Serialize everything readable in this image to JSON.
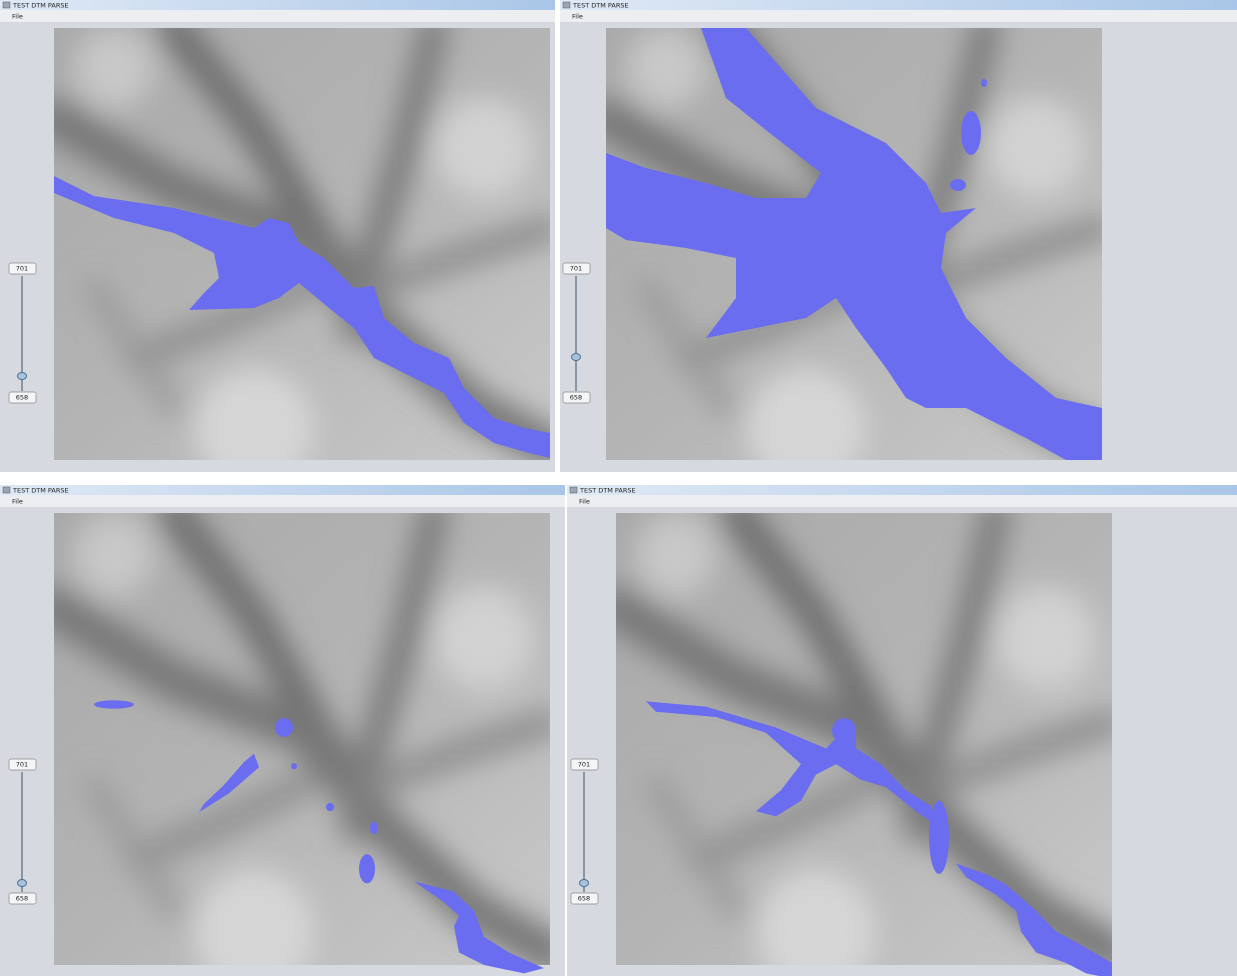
{
  "windows": [
    {
      "title": "TEST DTM PARSE",
      "menu": [
        "File"
      ],
      "slider": {
        "max_label": "701",
        "min_label": "658"
      }
    },
    {
      "title": "TEST DTM PARSE",
      "menu": [
        "File"
      ],
      "slider": {
        "max_label": "701",
        "min_label": "658"
      }
    },
    {
      "title": "TEST DTM PARSE",
      "menu": [
        "File"
      ],
      "slider": {
        "max_label": "701",
        "min_label": "658"
      }
    },
    {
      "title": "TEST DTM PARSE",
      "menu": [
        "File"
      ],
      "slider": {
        "max_label": "701",
        "min_label": "658"
      }
    }
  ]
}
